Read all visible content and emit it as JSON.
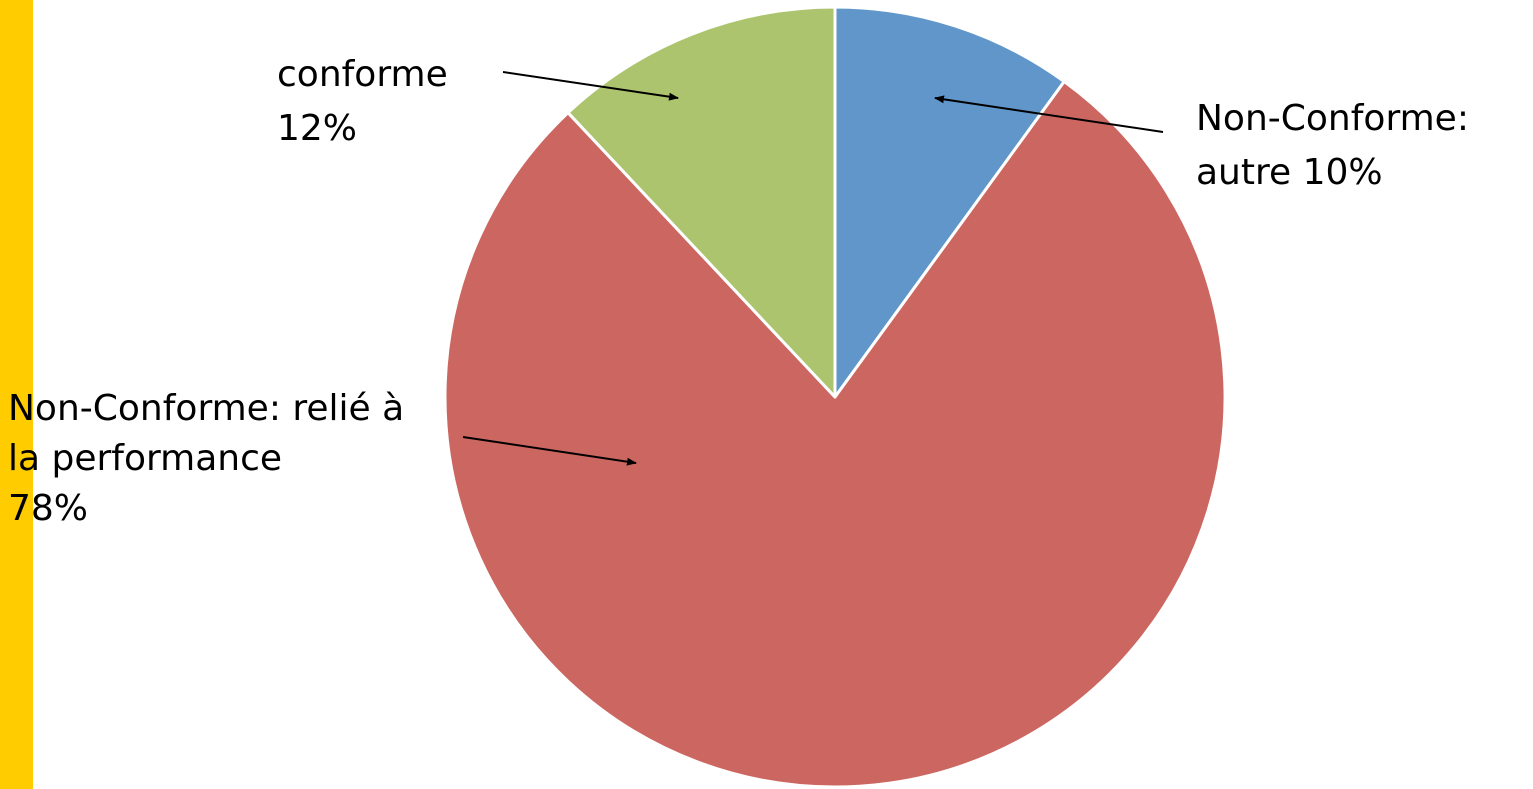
{
  "chart_data": {
    "type": "pie",
    "slices": [
      {
        "name": "Non-Conforme: autre",
        "value": 10,
        "label": "10%",
        "color": "#6096CA"
      },
      {
        "name": "Non-Conforme: relié à la performance",
        "value": 78,
        "label": "78%",
        "color": "#CC6660"
      },
      {
        "name": "conforme",
        "value": 12,
        "label": "12%",
        "color": "#ABC46D"
      }
    ],
    "start_angle_deg": 0,
    "direction": "clockwise"
  },
  "labels": {
    "autre_line1": "Non-Conforme:",
    "autre_line2": "autre 10%",
    "perf_line1": "Non-Conforme: relié à",
    "perf_line2": "la performance",
    "perf_line3": "78%",
    "conforme_line1": "conforme",
    "conforme_line2": "12%"
  },
  "colors": {
    "accent_bar": "#FFCC00",
    "slice_border": "#FFFFFF"
  }
}
